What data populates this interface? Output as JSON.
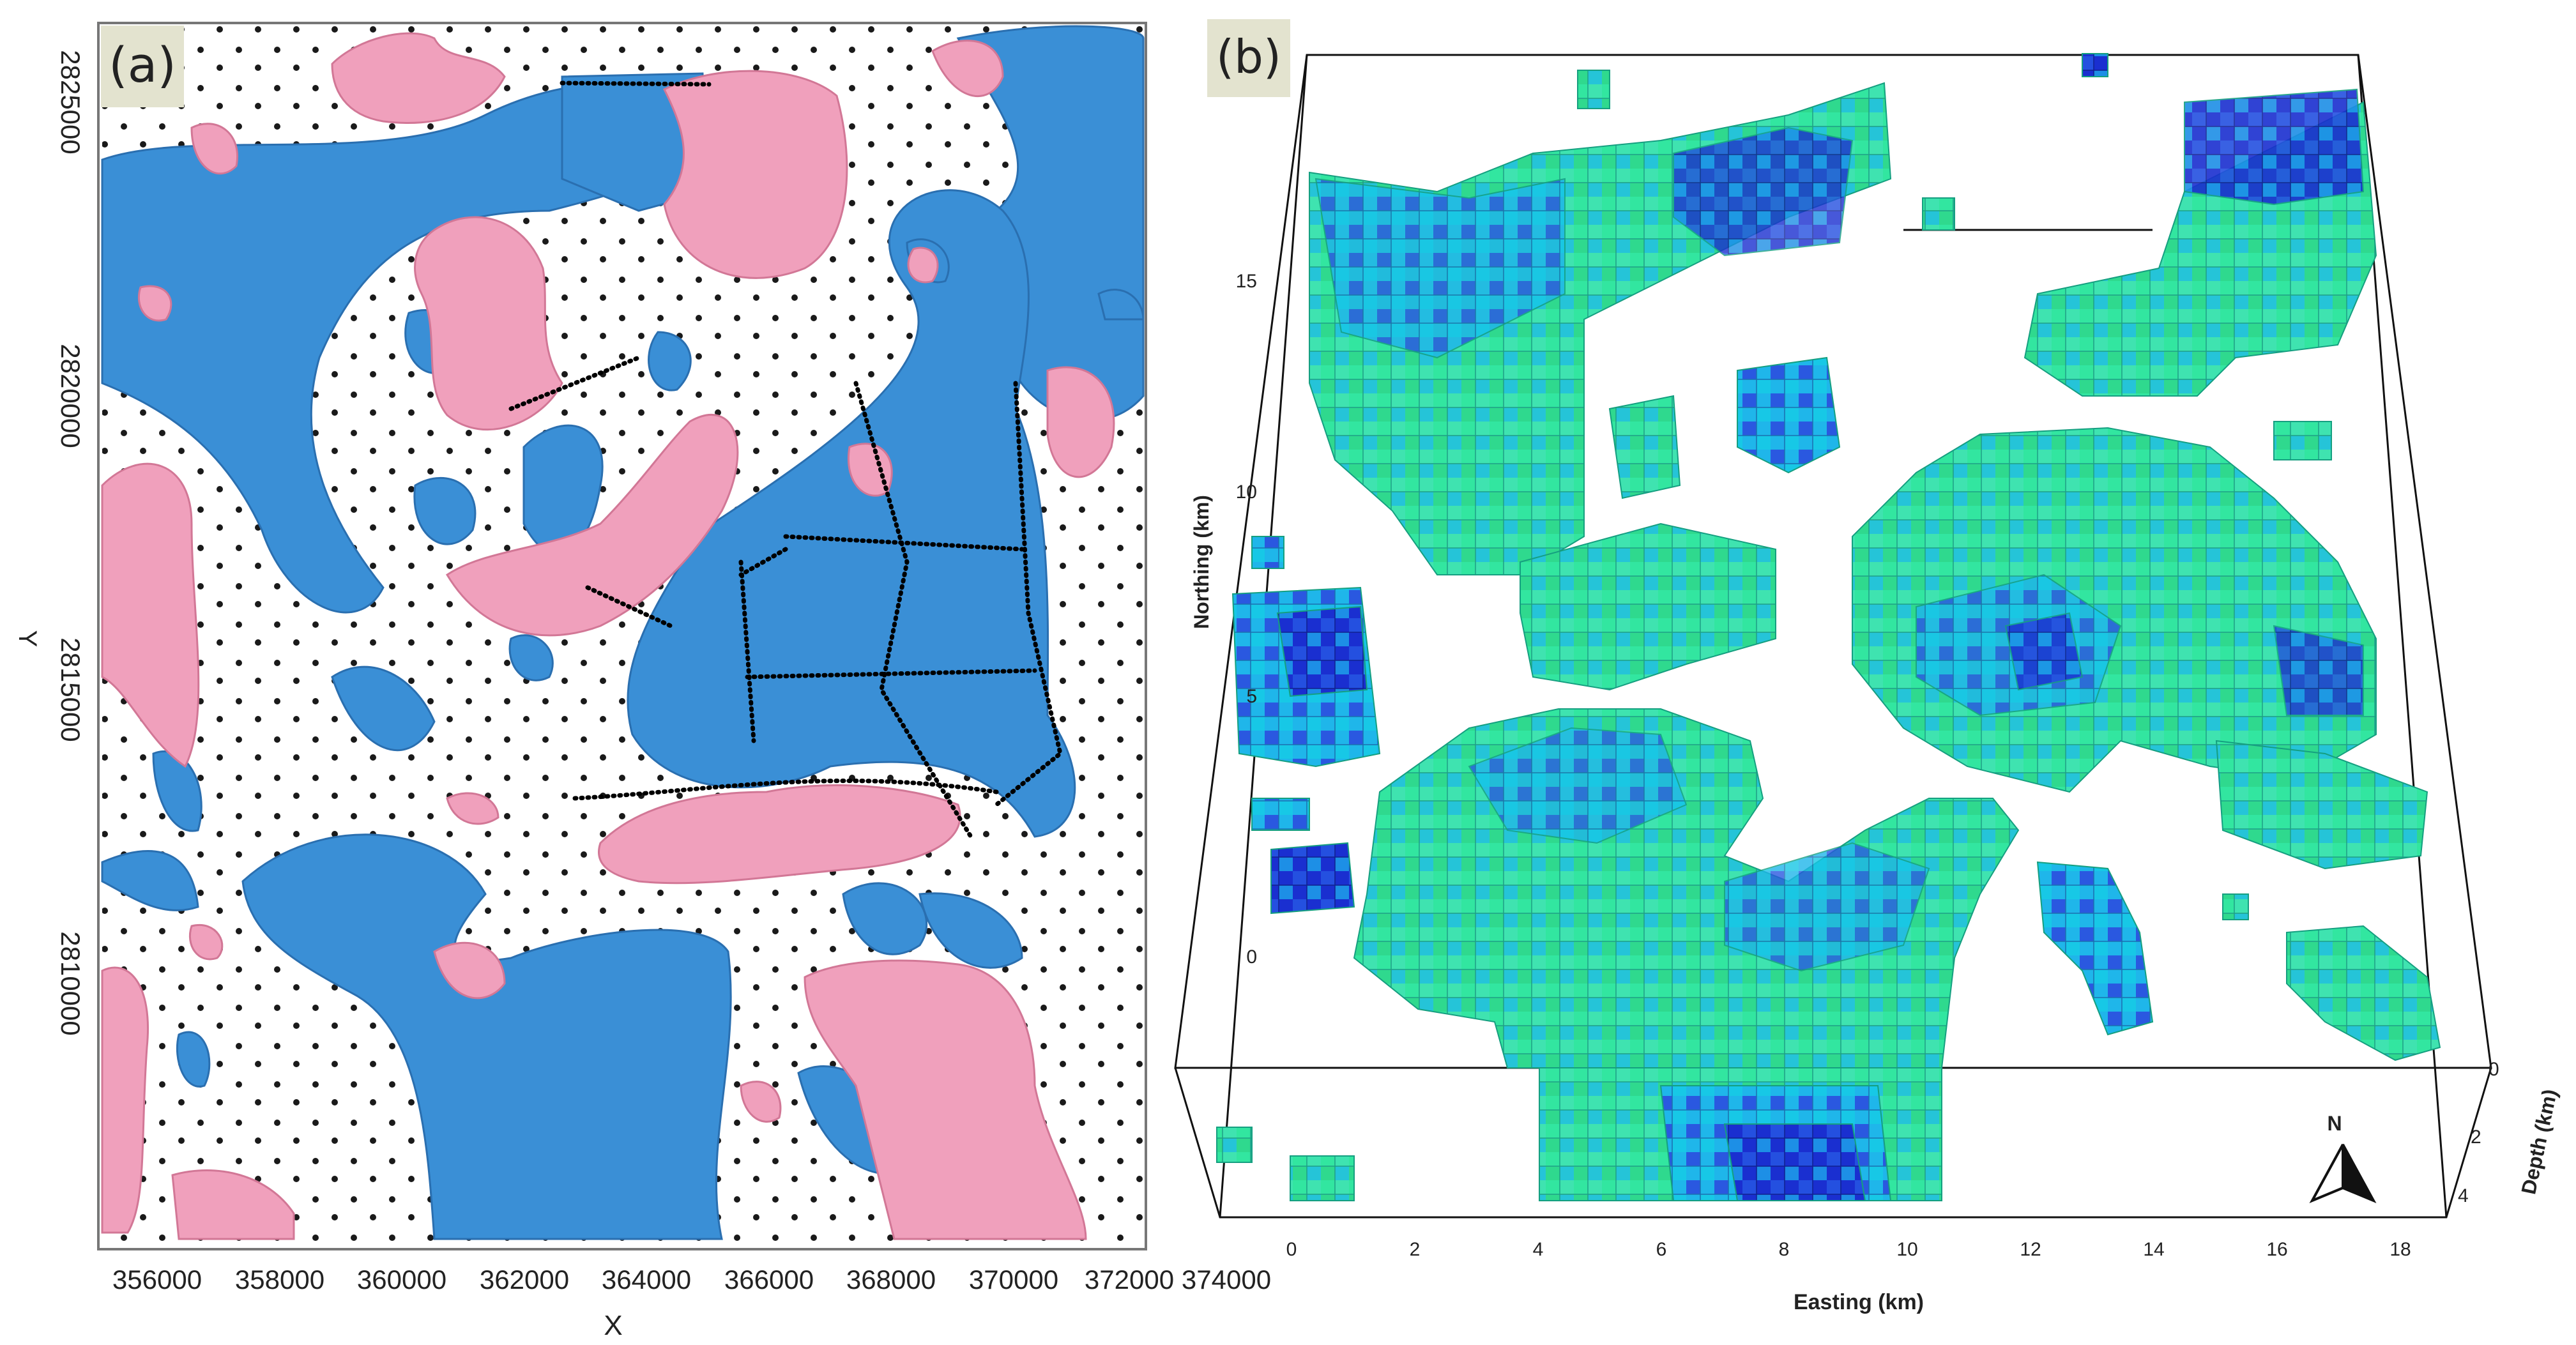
{
  "panels": [
    {
      "id": "a",
      "label": "(a)",
      "xlabel": "X",
      "ylabel": "Y",
      "x_ticks": [
        "356000",
        "358000",
        "360000",
        "362000",
        "364000",
        "366000",
        "368000",
        "370000",
        "372000",
        "374000"
      ],
      "y_ticks": [
        "2825000",
        "2820000",
        "2815000",
        "2810000"
      ],
      "colors": {
        "positive_isosurface": "#f0a0bc",
        "negative_isosurface": "#3a8fd6",
        "stations": "#000000"
      }
    },
    {
      "id": "b",
      "label": "(b)",
      "xlabel": "Easting (km)",
      "ylabel": "Northing (km)",
      "zlabel": "Depth (km)",
      "x_ticks": [
        "0",
        "2",
        "4",
        "6",
        "8",
        "10",
        "12",
        "14",
        "16",
        "18"
      ],
      "y_ticks": [
        "15",
        "10",
        "5",
        "0"
      ],
      "z_ticks": [
        "0",
        "2",
        "4"
      ],
      "north_label": "N",
      "colors": {
        "block_low": "#2ee28a",
        "block_mid": "#20c8e8",
        "block_high": "#1a2fd0"
      }
    }
  ]
}
